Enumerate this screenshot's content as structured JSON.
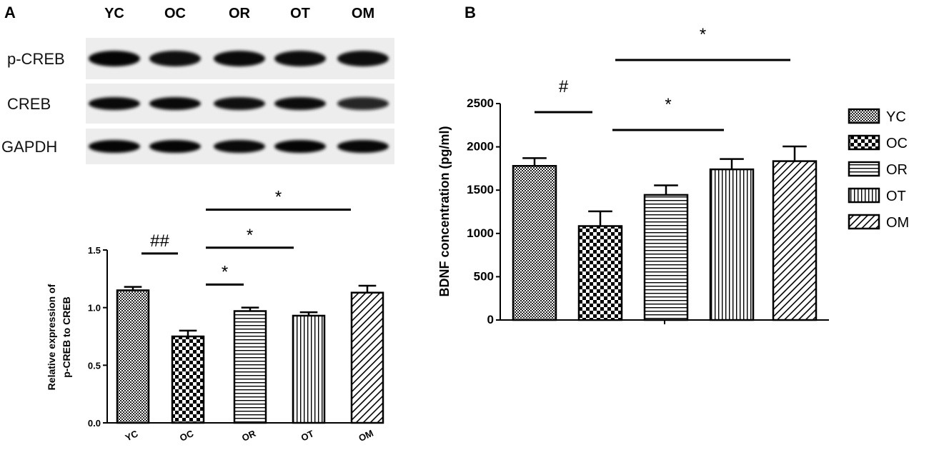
{
  "panels": {
    "a_label": "A",
    "b_label": "B"
  },
  "blot": {
    "lanes": [
      "YC",
      "OC",
      "OR",
      "OT",
      "OM"
    ],
    "rows": [
      {
        "label": "p-CREB",
        "intensity": [
          0.95,
          0.85,
          0.9,
          0.88,
          0.87
        ]
      },
      {
        "label": "CREB",
        "intensity": [
          0.9,
          0.9,
          0.85,
          0.88,
          0.75
        ]
      },
      {
        "label": "GAPDH",
        "intensity": [
          0.95,
          0.95,
          0.9,
          0.95,
          0.92
        ]
      }
    ]
  },
  "chart_data": [
    {
      "type": "bar",
      "categories": [
        "YC",
        "OC",
        "OR",
        "OT",
        "OM"
      ],
      "values": [
        1.15,
        0.75,
        0.97,
        0.93,
        1.13
      ],
      "errors": [
        0.03,
        0.05,
        0.03,
        0.03,
        0.06
      ],
      "patterns": [
        "fine-check",
        "checker",
        "horizontal",
        "vertical",
        "diagonal"
      ],
      "title": "",
      "xlabel": "",
      "ylabel": [
        "Relative  expression of",
        "p-CREB to CREB"
      ],
      "ylim": [
        0,
        1.5
      ],
      "yticks": [
        "0.0",
        "0.5",
        "1.0",
        "1.5"
      ],
      "annotations": [
        {
          "from": "YC",
          "to": "OC",
          "label": "##",
          "level": 1.47
        },
        {
          "from": "OC",
          "to": "OR",
          "label": "*",
          "level": 1.2
        },
        {
          "from": "OC",
          "to": "OT",
          "label": "*",
          "level": 1.52
        },
        {
          "from": "OC",
          "to": "OM",
          "label": "*",
          "level": 1.85
        }
      ]
    },
    {
      "type": "bar",
      "categories": [
        "YC",
        "OC",
        "OR",
        "OT",
        "OM"
      ],
      "values": [
        1780,
        1085,
        1445,
        1740,
        1835
      ],
      "errors": [
        90,
        170,
        110,
        120,
        170
      ],
      "patterns": [
        "fine-check",
        "checker",
        "horizontal",
        "vertical",
        "diagonal"
      ],
      "title": "",
      "xlabel": "",
      "ylabel": "BDNF concentration (pg/ml)",
      "ylim": [
        0,
        2500
      ],
      "yticks": [
        "0",
        "500",
        "1000",
        "1500",
        "2000",
        "2500"
      ],
      "legend": [
        "YC",
        "OC",
        "OR",
        "OT",
        "OM"
      ],
      "legend_position": "right",
      "annotations": [
        {
          "from": "YC",
          "to": "OC",
          "label": "#",
          "level": 2400
        },
        {
          "from": "OC",
          "to": "OT",
          "label": "*",
          "level": 2200
        },
        {
          "from": "OC",
          "to": "OM",
          "label": "*",
          "level": 3000
        }
      ]
    }
  ]
}
